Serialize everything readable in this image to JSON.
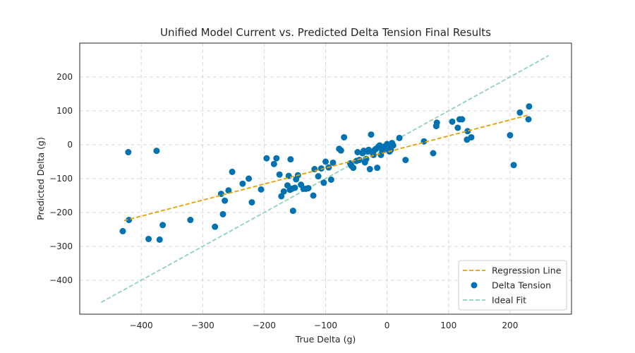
{
  "chart_data": {
    "type": "scatter",
    "title": "Unified Model Current vs. Predicted Delta Tension Final Results",
    "xlabel": "True Delta (g)",
    "ylabel": "Predicted Delta (g)",
    "xlim": [
      -500,
      300
    ],
    "ylim": [
      -500,
      300
    ],
    "xticks": [
      -400,
      -300,
      -200,
      -100,
      0,
      100,
      200
    ],
    "yticks": [
      -400,
      -300,
      -200,
      -100,
      0,
      100,
      200
    ],
    "grid": true,
    "legend_position": "bottom-right",
    "colors": {
      "points": "#0072b2",
      "regression": "#e69f00",
      "ideal": "#8fd1bb"
    },
    "legend": [
      {
        "label": "Regression Line",
        "kind": "regression"
      },
      {
        "label": "Delta Tension",
        "kind": "points"
      },
      {
        "label": "Ideal Fit",
        "kind": "ideal"
      }
    ],
    "regression_line": {
      "name": "Regression Line",
      "x": [
        -428,
        229
      ],
      "y": [
        -224,
        87
      ]
    },
    "ideal_line": {
      "name": "Ideal Fit",
      "x": [
        -465,
        263
      ],
      "y": [
        -465,
        263
      ]
    },
    "points": {
      "name": "Delta Tension",
      "x": [
        -430,
        -421,
        -420,
        -388,
        -375,
        -370,
        -365,
        -320,
        -280,
        -270,
        -267,
        -264,
        -258,
        -252,
        -235,
        -225,
        -220,
        -205,
        -196,
        -184,
        -180,
        -175,
        -172,
        -168,
        -162,
        -160,
        -158,
        -157,
        -155,
        -153,
        -150,
        -148,
        -145,
        -140,
        -136,
        -132,
        -128,
        -120,
        -118,
        -112,
        -107,
        -103,
        -100,
        -95,
        -91,
        -88,
        -78,
        -75,
        -70,
        -60,
        -58,
        -55,
        -50,
        -48,
        -45,
        -40,
        -38,
        -36,
        -34,
        -32,
        -30,
        -28,
        -26,
        -24,
        -22,
        -20,
        -18,
        -16,
        -14,
        -12,
        -10,
        -8,
        -6,
        -4,
        -2,
        0,
        2,
        4,
        6,
        8,
        10,
        20,
        30,
        60,
        75,
        80,
        81,
        106,
        115,
        118,
        122,
        130,
        131,
        137,
        200,
        206,
        216,
        230,
        231
      ],
      "y": [
        -255,
        -22,
        -222,
        -278,
        -18,
        -280,
        -237,
        -222,
        -242,
        -145,
        -205,
        -165,
        -135,
        -80,
        -115,
        -100,
        -170,
        -132,
        -40,
        -57,
        -40,
        -88,
        -152,
        -138,
        -120,
        -92,
        -133,
        -43,
        -130,
        -195,
        -127,
        -102,
        -90,
        -118,
        -130,
        -130,
        -128,
        -150,
        -72,
        -93,
        -70,
        -112,
        -50,
        -67,
        -103,
        -53,
        -12,
        -17,
        22,
        -55,
        -62,
        -68,
        -48,
        -22,
        -45,
        -25,
        -18,
        -52,
        -42,
        -20,
        -15,
        -72,
        30,
        -22,
        -30,
        -15,
        -12,
        -68,
        -5,
        -2,
        -30,
        -18,
        -10,
        -5,
        -12,
        2,
        -3,
        -20,
        -15,
        5,
        -2,
        20,
        -45,
        10,
        -25,
        55,
        65,
        68,
        50,
        75,
        75,
        15,
        40,
        22,
        28,
        -60,
        95,
        75,
        113
      ]
    }
  }
}
